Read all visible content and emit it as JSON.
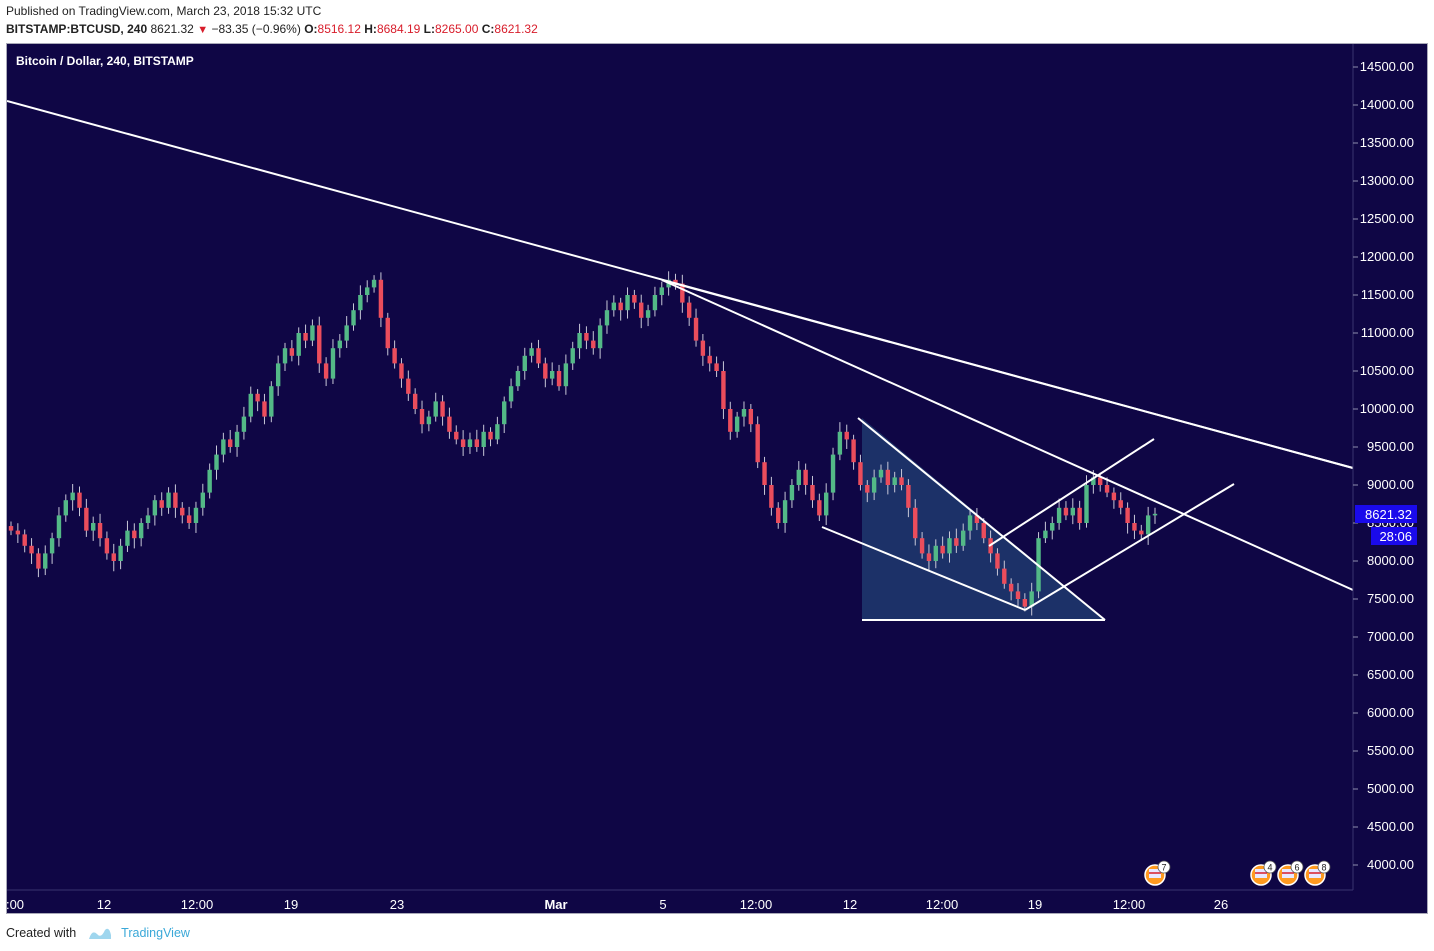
{
  "header": {
    "published": "Published on TradingView.com, March 23, 2018 15:32 UTC",
    "symbol": "BITSTAMP:BTCUSD, 240",
    "last": "8621.32",
    "change": "−83.35 (−0.96%)",
    "o_label": "O:",
    "o_val": "8516.12",
    "h_label": "H:",
    "h_val": "8684.19",
    "l_label": "L:",
    "l_val": "8265.00",
    "c_label": "C:",
    "c_val": "8621.32"
  },
  "legend": "Bitcoin / Dollar, 240, BITSTAMP",
  "price_label": "8621.32",
  "countdown_label": "28:06",
  "footer": {
    "created_with": "Created with",
    "brand": "TradingView"
  },
  "colors": {
    "background": "#0f0645",
    "up": "#53b987",
    "down": "#eb4d5c",
    "lines": "#ffffff",
    "triangle_fill": "#1f3a6e",
    "price_tag": "#1a0aeb"
  },
  "event_badges": [
    "7",
    "4",
    "6",
    "8"
  ],
  "chart_data": {
    "type": "candlestick",
    "title": "Bitcoin / Dollar, 240, BITSTAMP",
    "y_ticks": [
      14500,
      14000,
      13500,
      13000,
      12500,
      12000,
      11500,
      11000,
      10500,
      10000,
      9500,
      9000,
      8500,
      8000,
      7500,
      7000,
      6500,
      6000,
      5500,
      5000,
      4500,
      4000
    ],
    "y_tick_labels": [
      "14500.00",
      "14000.00",
      "13500.00",
      "13000.00",
      "12500.00",
      "12000.00",
      "11500.00",
      "11000.00",
      "10500.00",
      "10000.00",
      "9500.00",
      "9000.00",
      "8500.00",
      "8000.00",
      "7500.00",
      "7000.00",
      "6500.00",
      "6000.00",
      "5500.00",
      "5000.00",
      "4500.00",
      "4000.00"
    ],
    "x_tick_labels": [
      ":00",
      "12",
      "12:00",
      "19",
      "23",
      "Mar",
      "5",
      "12:00",
      "12",
      "12:00",
      "19",
      "12:00",
      "26"
    ],
    "ylim": [
      3650,
      14900
    ],
    "last_price": 8621.32,
    "series_closes": [
      8400,
      8350,
      8200,
      8100,
      7900,
      8100,
      8300,
      8600,
      8800,
      8900,
      8700,
      8400,
      8500,
      8300,
      8100,
      8000,
      8200,
      8400,
      8300,
      8500,
      8600,
      8800,
      8700,
      8900,
      8700,
      8600,
      8500,
      8700,
      8900,
      9200,
      9400,
      9600,
      9500,
      9700,
      9900,
      10200,
      10100,
      9900,
      10300,
      10600,
      10800,
      10700,
      11000,
      10900,
      11100,
      10600,
      10400,
      10800,
      10900,
      11100,
      11300,
      11500,
      11600,
      11700,
      11200,
      10800,
      10600,
      10400,
      10200,
      10000,
      9800,
      9900,
      10100,
      9900,
      9700,
      9600,
      9500,
      9600,
      9500,
      9700,
      9600,
      9800,
      10100,
      10300,
      10500,
      10700,
      10800,
      10600,
      10400,
      10500,
      10300,
      10600,
      10800,
      11000,
      10900,
      10800,
      11100,
      11300,
      11400,
      11300,
      11500,
      11400,
      11200,
      11300,
      11500,
      11600,
      11700,
      11650,
      11400,
      11200,
      10900,
      10700,
      10600,
      10500,
      10000,
      9700,
      9900,
      10000,
      9800,
      9300,
      9000,
      8700,
      8500,
      8800,
      9000,
      9200,
      9000,
      8800,
      8600,
      8900,
      9400,
      9700,
      9600,
      9300,
      9000,
      8900,
      9100,
      9200,
      9000,
      9100,
      9000,
      8700,
      8300,
      8100,
      8000,
      8200,
      8100,
      8300,
      8200,
      8400,
      8600,
      8500,
      8300,
      8100,
      7900,
      7700,
      7600,
      7500,
      7400,
      7600,
      8300,
      8400,
      8500,
      8700,
      8600,
      8700,
      8500,
      9000,
      9100,
      9000,
      8900,
      8800,
      8700,
      8500,
      8400,
      8350,
      8600,
      8621
    ]
  }
}
